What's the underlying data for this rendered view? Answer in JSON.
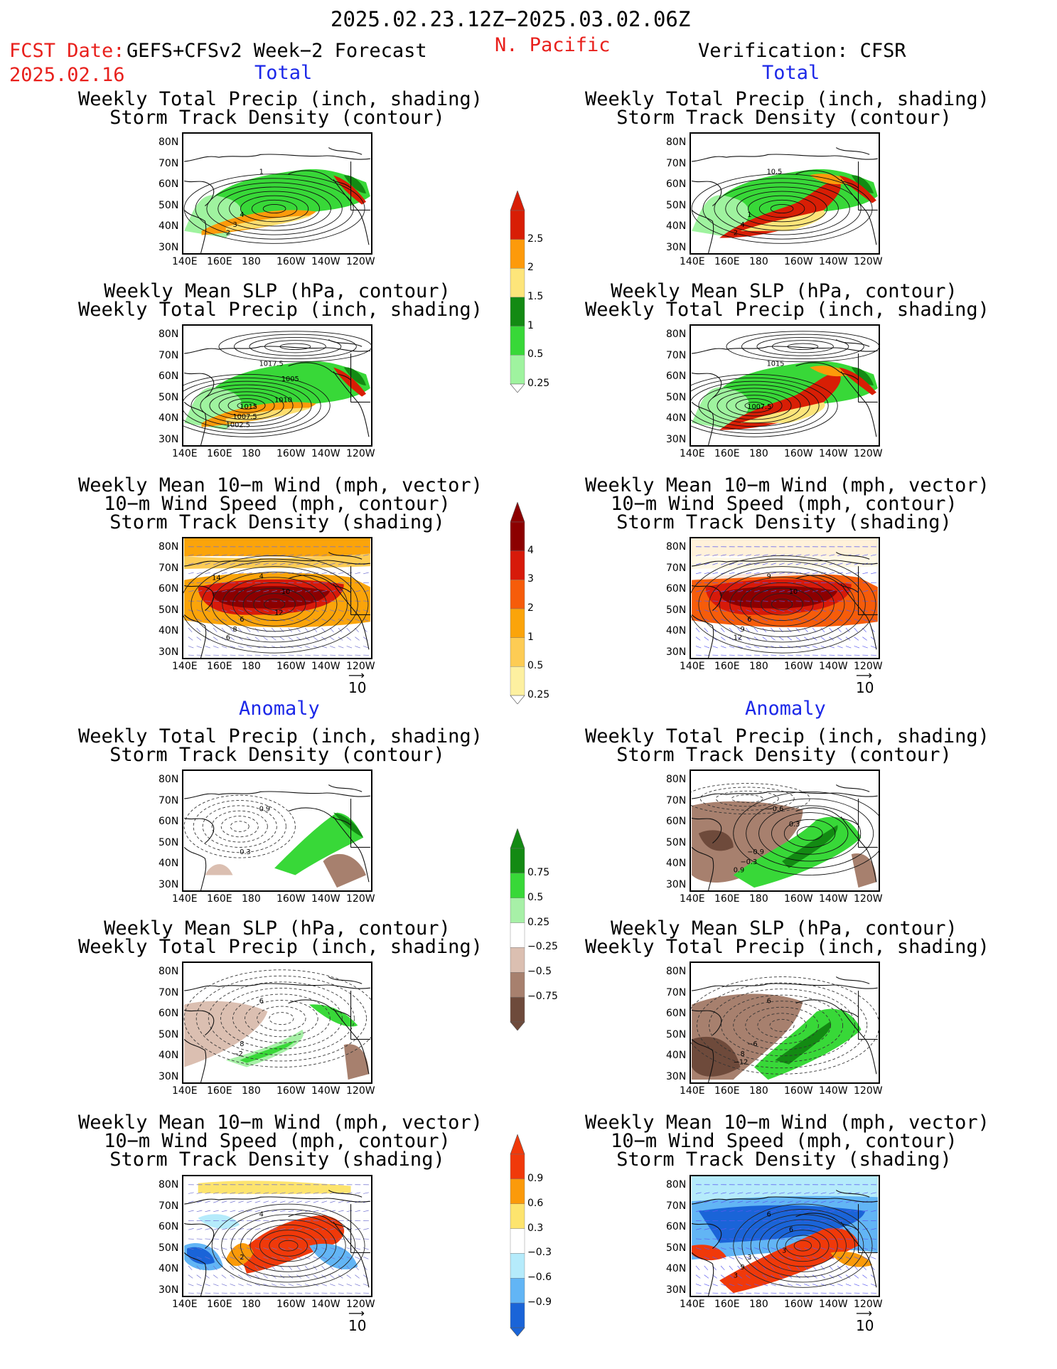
{
  "header": {
    "date_range": "2025.02.23.12Z−2025.03.02.06Z",
    "fcst_label": "FCST Date:",
    "fcst_date": "2025.02.16",
    "left_source": "GEFS+CFSv2 Week−2 Forecast",
    "region": "N. Pacific",
    "right_source": "Verification: CFSR"
  },
  "sections": {
    "total": "Total",
    "anomaly": "Anomaly"
  },
  "panel_titles": {
    "precip_track": "Weekly Total Precip (inch, shading)\nStorm Track Density (contour)",
    "slp_precip": "Weekly Mean SLP (hPa, contour)\nWeekly Total Precip (inch, shading)",
    "wind_track": "Weekly Mean 10−m Wind (mph, vector)\n10−m Wind Speed (mph, contour)\nStorm Track Density (shading)"
  },
  "axes": {
    "lat_ticks": [
      "80N",
      "70N",
      "60N",
      "50N",
      "40N",
      "30N"
    ],
    "lon_ticks": [
      "140E",
      "160E",
      "180",
      "160W",
      "140W",
      "120W"
    ]
  },
  "vector_ref": "10",
  "colorbars": {
    "precip_total": {
      "labels": [
        "2.5",
        "2",
        "1.5",
        "1",
        "0.5",
        "0.25"
      ],
      "colors": [
        "#d81e05",
        "#fd9a0a",
        "#fde57a",
        "#138a13",
        "#38d838",
        "#9ff39f"
      ]
    },
    "track_total": {
      "labels": [
        "4",
        "3",
        "2",
        "1",
        "0.5",
        "0.25"
      ],
      "colors": [
        "#8c0000",
        "#d71a0a",
        "#f65c0a",
        "#fba40a",
        "#fdcc54",
        "#fdf0a0"
      ]
    },
    "precip_anom": {
      "labels": [
        "0.75",
        "0.5",
        "0.25",
        "−0.25",
        "−0.5",
        "−0.75"
      ],
      "colors": [
        "#138a13",
        "#38d838",
        "#a7f0a7",
        "#ffffff",
        "#dbbfb1",
        "#a7806e",
        "#6e4a3b"
      ]
    },
    "track_anom": {
      "labels": [
        "0.9",
        "0.6",
        "0.3",
        "−0.3",
        "−0.6",
        "−0.9"
      ],
      "colors": [
        "#f0390a",
        "#fb9a0a",
        "#fde46e",
        "#ffffff",
        "#b5ebfb",
        "#62b5f5",
        "#1a64d8"
      ]
    }
  },
  "contour_labels": {
    "p1l": [
      "1",
      "4",
      "3",
      "2"
    ],
    "p1r": [
      "10.5",
      "1",
      "4",
      "2"
    ],
    "p2l": [
      "1017.5",
      "1015",
      "1007.5",
      "1002.5",
      "1005",
      "1010"
    ],
    "p2r": [
      "1015",
      "1007.5"
    ],
    "p3l": [
      "4",
      "6",
      "8",
      "6",
      "10",
      "12",
      "14"
    ],
    "p3r": [
      "9",
      "6",
      "9",
      "12",
      "10"
    ],
    "p4l": [
      "0.9",
      "0.3"
    ],
    "p4r": [
      "−0.6",
      "−0.9",
      "−0.3",
      "0.9",
      "0.3"
    ],
    "p5l": [
      "6",
      "8",
      "−2"
    ],
    "p5r": [
      "6",
      "−6",
      "8",
      "−12"
    ],
    "p6l": [
      "4",
      "2"
    ],
    "p6r": [
      "6",
      "3",
      "9",
      "3",
      "6",
      "3"
    ]
  }
}
